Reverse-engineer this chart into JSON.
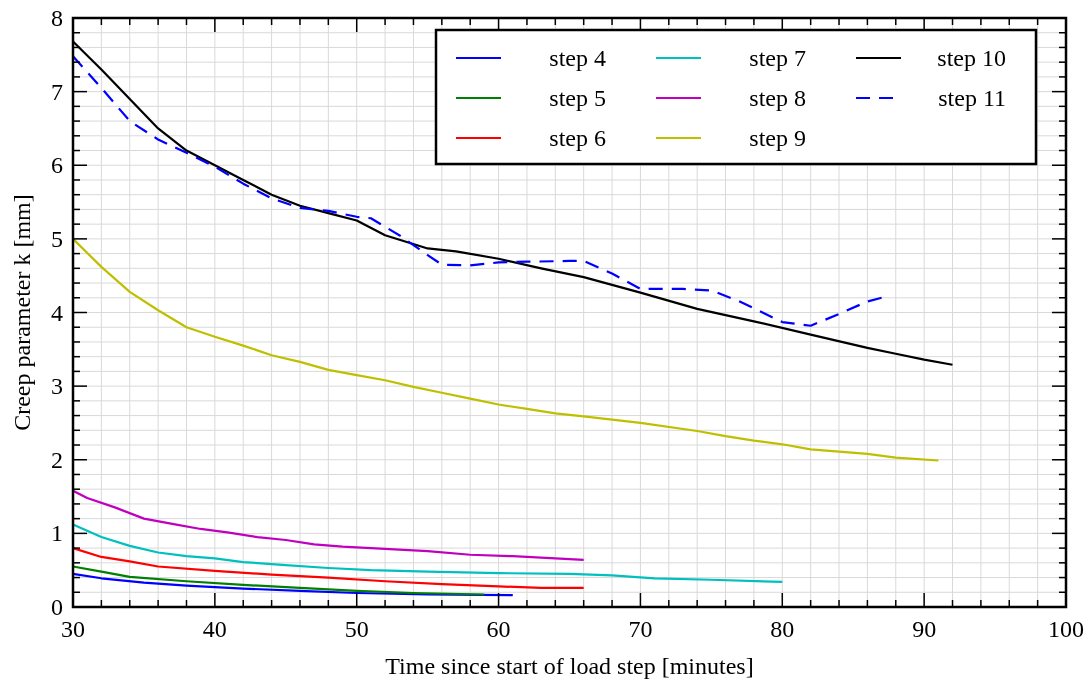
{
  "chart_data": {
    "type": "line",
    "xlabel": "Time since start of load step [minutes]",
    "ylabel": "Creep parameter k [mm]",
    "xlim": [
      30,
      100
    ],
    "ylim": [
      0,
      8
    ],
    "xticks": [
      30,
      {
        "value": 32,
        "label": null
      },
      {
        "value": 34,
        "label": null
      },
      {
        "value": 36,
        "label": null
      },
      {
        "value": 38,
        "label": null
      },
      40,
      {
        "value": 42,
        "label": null
      },
      {
        "value": 44,
        "label": null
      },
      {
        "value": 46,
        "label": null
      },
      {
        "value": 48,
        "label": null
      },
      50,
      {
        "value": 52,
        "label": null
      },
      {
        "value": 54,
        "label": null
      },
      {
        "value": 56,
        "label": null
      },
      {
        "value": 58,
        "label": null
      },
      60,
      {
        "value": 62,
        "label": null
      },
      {
        "value": 64,
        "label": null
      },
      {
        "value": 66,
        "label": null
      },
      {
        "value": 68,
        "label": null
      },
      70,
      {
        "value": 72,
        "label": null
      },
      {
        "value": 74,
        "label": null
      },
      {
        "value": 76,
        "label": null
      },
      {
        "value": 78,
        "label": null
      },
      80,
      {
        "value": 82,
        "label": null
      },
      {
        "value": 84,
        "label": null
      },
      {
        "value": 86,
        "label": null
      },
      {
        "value": 88,
        "label": null
      },
      90,
      {
        "value": 92,
        "label": null
      },
      {
        "value": 94,
        "label": null
      },
      {
        "value": 96,
        "label": null
      },
      {
        "value": 98,
        "label": null
      },
      100
    ],
    "yticks": [
      0,
      {
        "value": 0.2,
        "label": null
      },
      {
        "value": 0.4,
        "label": null
      },
      {
        "value": 0.6,
        "label": null
      },
      {
        "value": 0.8,
        "label": null
      },
      1,
      {
        "value": 1.2,
        "label": null
      },
      {
        "value": 1.4,
        "label": null
      },
      {
        "value": 1.6,
        "label": null
      },
      {
        "value": 1.8,
        "label": null
      },
      2,
      {
        "value": 2.2,
        "label": null
      },
      {
        "value": 2.4,
        "label": null
      },
      {
        "value": 2.6,
        "label": null
      },
      {
        "value": 2.8,
        "label": null
      },
      3,
      {
        "value": 3.2,
        "label": null
      },
      {
        "value": 3.4,
        "label": null
      },
      {
        "value": 3.6,
        "label": null
      },
      {
        "value": 3.8,
        "label": null
      },
      4,
      {
        "value": 4.2,
        "label": null
      },
      {
        "value": 4.4,
        "label": null
      },
      {
        "value": 4.6,
        "label": null
      },
      {
        "value": 4.8,
        "label": null
      },
      5,
      {
        "value": 5.2,
        "label": null
      },
      {
        "value": 5.4,
        "label": null
      },
      {
        "value": 5.6,
        "label": null
      },
      {
        "value": 5.8,
        "label": null
      },
      6,
      {
        "value": 6.2,
        "label": null
      },
      {
        "value": 6.4,
        "label": null
      },
      {
        "value": 6.6,
        "label": null
      },
      {
        "value": 6.8,
        "label": null
      },
      7,
      {
        "value": 7.2,
        "label": null
      },
      {
        "value": 7.4,
        "label": null
      },
      {
        "value": 7.6,
        "label": null
      },
      {
        "value": 7.8,
        "label": null
      },
      8
    ],
    "grid": true,
    "legend": "top right",
    "marker": "none",
    "series": [
      {
        "name": "step 4",
        "color": "#0000ff",
        "line_style": "solid",
        "x": [
          30,
          32,
          35,
          38,
          42,
          46,
          50,
          55,
          61
        ],
        "values": [
          0.45,
          0.39,
          0.33,
          0.29,
          0.25,
          0.22,
          0.19,
          0.17,
          0.16
        ]
      },
      {
        "name": "step 5",
        "color": "#008000",
        "line_style": "solid",
        "x": [
          30,
          32,
          34,
          38,
          42,
          46,
          50,
          54,
          59
        ],
        "values": [
          0.55,
          0.48,
          0.41,
          0.35,
          0.3,
          0.26,
          0.22,
          0.19,
          0.17
        ]
      },
      {
        "name": "step 6",
        "color": "#ff0000",
        "line_style": "solid",
        "x": [
          30,
          32,
          34,
          36,
          40,
          44,
          48,
          52,
          56,
          60,
          63,
          66
        ],
        "values": [
          0.8,
          0.68,
          0.62,
          0.55,
          0.49,
          0.44,
          0.4,
          0.35,
          0.31,
          0.28,
          0.26,
          0.26
        ]
      },
      {
        "name": "step 7",
        "color": "#00bfbf",
        "line_style": "solid",
        "x": [
          30,
          32,
          34,
          36,
          38,
          40,
          42,
          45,
          48,
          51,
          55,
          60,
          65,
          68,
          71,
          75,
          80
        ],
        "values": [
          1.12,
          0.95,
          0.83,
          0.74,
          0.69,
          0.66,
          0.61,
          0.57,
          0.53,
          0.5,
          0.48,
          0.46,
          0.45,
          0.43,
          0.39,
          0.37,
          0.34
        ]
      },
      {
        "name": "step 8",
        "color": "#bf00bf",
        "line_style": "solid",
        "x": [
          30,
          31,
          33,
          35,
          37,
          39,
          41,
          43,
          45,
          47,
          49,
          52,
          55,
          58,
          61,
          64,
          66
        ],
        "values": [
          1.58,
          1.48,
          1.35,
          1.2,
          1.13,
          1.06,
          1.01,
          0.95,
          0.91,
          0.85,
          0.82,
          0.79,
          0.76,
          0.71,
          0.69,
          0.66,
          0.64
        ]
      },
      {
        "name": "step 9",
        "color": "#bfbf00",
        "line_style": "solid",
        "x": [
          30,
          32,
          34,
          36,
          38,
          40,
          42,
          44,
          46,
          48,
          50,
          52,
          54,
          56,
          58,
          60,
          62,
          64,
          66,
          70,
          74,
          76,
          78,
          80,
          82,
          86,
          88,
          91
        ],
        "values": [
          5.0,
          4.62,
          4.28,
          4.03,
          3.8,
          3.67,
          3.55,
          3.42,
          3.33,
          3.22,
          3.15,
          3.08,
          2.99,
          2.91,
          2.83,
          2.75,
          2.69,
          2.63,
          2.59,
          2.5,
          2.39,
          2.32,
          2.26,
          2.21,
          2.14,
          2.08,
          2.03,
          1.99
        ]
      },
      {
        "name": "step 10",
        "color": "#000000",
        "line_style": "solid",
        "x": [
          30,
          32,
          34,
          36,
          38,
          40,
          42,
          44,
          46,
          48,
          50,
          52,
          55,
          57,
          60,
          63,
          66,
          70,
          74,
          78,
          82,
          86,
          88,
          90,
          92
        ],
        "values": [
          7.68,
          7.3,
          6.9,
          6.5,
          6.2,
          6.0,
          5.8,
          5.6,
          5.45,
          5.35,
          5.25,
          5.05,
          4.87,
          4.83,
          4.73,
          4.6,
          4.48,
          4.27,
          4.05,
          3.88,
          3.7,
          3.52,
          3.44,
          3.36,
          3.29
        ]
      },
      {
        "name": "step 11",
        "color": "#0000ff",
        "line_style": "dashed",
        "x": [
          30,
          32,
          34,
          36,
          38,
          40,
          42,
          44,
          46,
          48,
          50,
          51,
          53,
          55,
          56,
          58,
          60,
          62,
          65,
          66,
          68,
          70,
          73,
          75,
          77,
          80,
          82,
          84,
          86,
          87
        ],
        "values": [
          7.48,
          7.05,
          6.6,
          6.35,
          6.17,
          5.98,
          5.75,
          5.55,
          5.42,
          5.38,
          5.3,
          5.28,
          5.05,
          4.78,
          4.65,
          4.64,
          4.68,
          4.69,
          4.7,
          4.7,
          4.53,
          4.32,
          4.32,
          4.3,
          4.15,
          3.87,
          3.82,
          3.98,
          4.15,
          4.2
        ]
      }
    ]
  }
}
